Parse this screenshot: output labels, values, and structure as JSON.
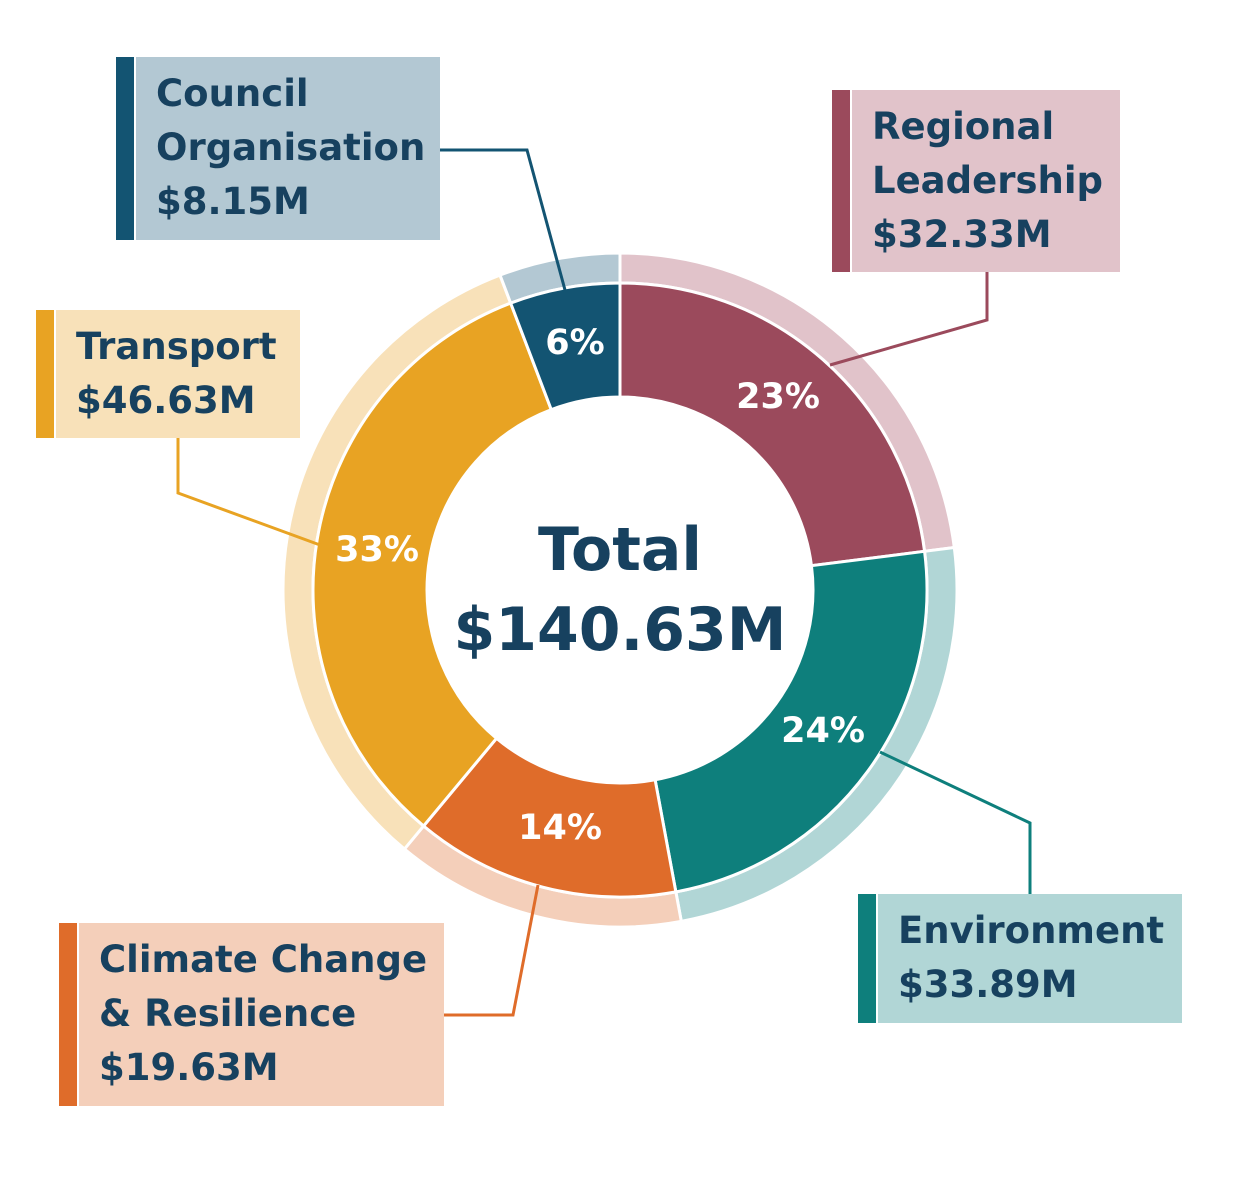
{
  "chart_data": {
    "type": "pie",
    "donut": true,
    "center_label": "Total",
    "center_value": "$140.63M",
    "slices": [
      {
        "name": "Regional Leadership",
        "amount": "$32.33M",
        "value": 32.33,
        "percent": "23%",
        "color": "#9b4a5c",
        "light": "#e1c3ca"
      },
      {
        "name": "Environment",
        "amount": "$33.89M",
        "value": 33.89,
        "percent": "24%",
        "color": "#0e7f7c",
        "light": "#b1d6d6"
      },
      {
        "name": "Climate Change\n& Resilience",
        "amount": "$19.63M",
        "value": 19.63,
        "percent": "14%",
        "color": "#df6c2a",
        "light": "#f4cfba"
      },
      {
        "name": "Transport",
        "amount": "$46.63M",
        "value": 46.63,
        "percent": "33%",
        "color": "#e8a323",
        "light": "#f8e1b9"
      },
      {
        "name": "Council\nOrganisation",
        "amount": "$8.15M",
        "value": 8.15,
        "percent": "6%",
        "color": "#135472",
        "light": "#b3c8d3"
      }
    ]
  }
}
